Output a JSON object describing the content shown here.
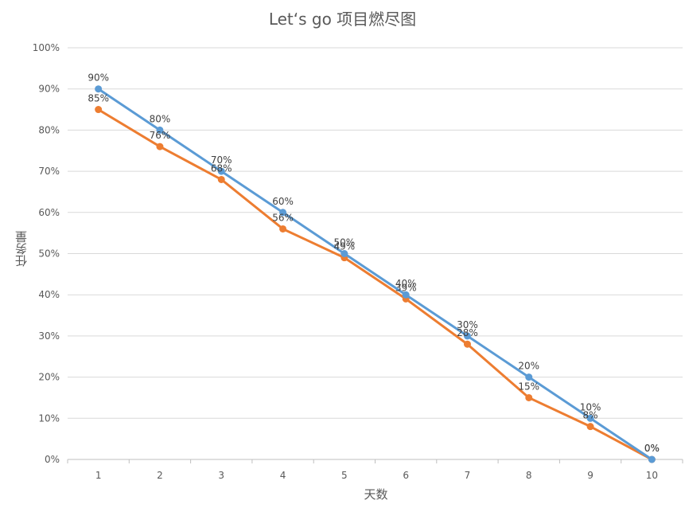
{
  "chart_data": {
    "type": "line",
    "title": "Let‘s go 项目燃尽图",
    "xlabel": "天数",
    "ylabel": "任务量",
    "categories": [
      "1",
      "2",
      "3",
      "4",
      "5",
      "6",
      "7",
      "8",
      "9",
      "10"
    ],
    "series": [
      {
        "name": "",
        "color": "#5b9bd5",
        "values": [
          90,
          80,
          70,
          60,
          50,
          40,
          30,
          20,
          10,
          0
        ],
        "labels": [
          "90%",
          "80%",
          "70%",
          "60%",
          "50%",
          "40%",
          "30%",
          "20%",
          "10%",
          "0%"
        ]
      },
      {
        "name": "",
        "color": "#ed7d31",
        "values": [
          85,
          76,
          68,
          56,
          49,
          39,
          28,
          15,
          8,
          0
        ],
        "labels": [
          "85%",
          "76%",
          "68%",
          "56%",
          "49%",
          "39%",
          "28%",
          "15%",
          "8%",
          "0%"
        ]
      }
    ],
    "yticks": [
      "0%",
      "10%",
      "20%",
      "30%",
      "40%",
      "50%",
      "60%",
      "70%",
      "80%",
      "90%",
      "100%"
    ],
    "ylim": [
      0,
      100
    ],
    "grid": true,
    "legend": "none"
  }
}
